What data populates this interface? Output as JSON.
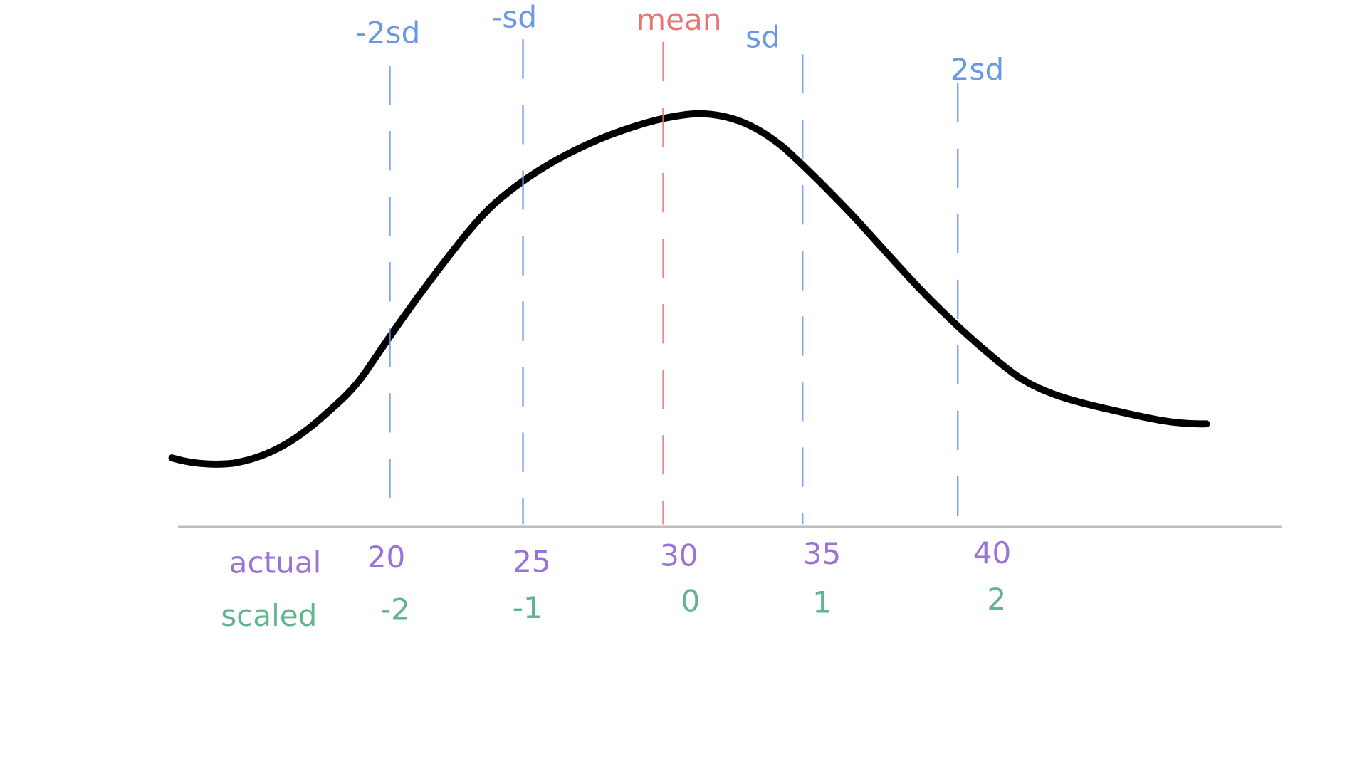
{
  "lines": [
    {
      "label": "-2sd"
    },
    {
      "label": "-sd"
    },
    {
      "label": "mean"
    },
    {
      "label": "sd"
    },
    {
      "label": "2sd"
    }
  ],
  "rows": [
    {
      "label": "actual",
      "values": [
        "20",
        "25",
        "30",
        "35",
        "40"
      ]
    },
    {
      "label": "scaled",
      "values": [
        "-2",
        "-1",
        "0",
        "1",
        "2"
      ]
    }
  ]
}
